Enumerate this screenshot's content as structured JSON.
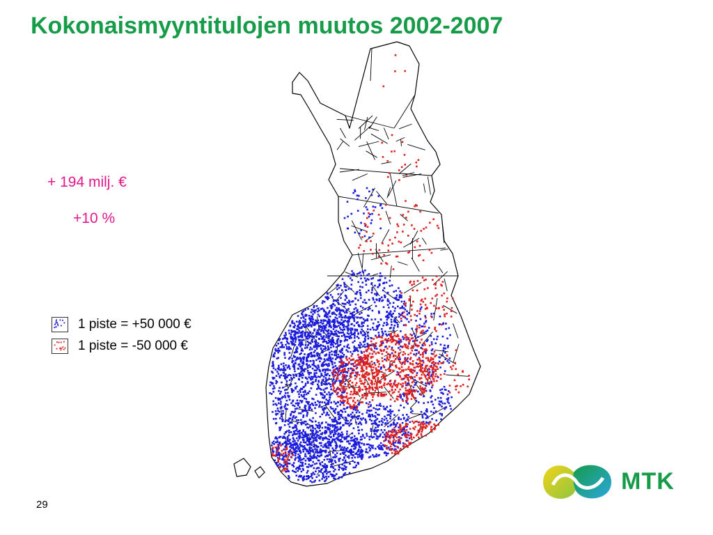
{
  "title": "Kokonaismyyntitulojen muutos 2002-2007",
  "stats": {
    "amount": "+ 194 milj. €",
    "percent": "+10 %"
  },
  "legend": [
    {
      "label": "1 piste = +50 000 €",
      "color": "#1a1adc"
    },
    {
      "label": "1 piste = -50 000 €",
      "color": "#e0201e"
    }
  ],
  "map": {
    "region": "Finland",
    "outline_color": "#000000",
    "positive_color": "#1a1adc",
    "negative_color": "#e0201e"
  },
  "page_number": "29",
  "logo": {
    "text": "MTK",
    "colors": [
      "#f3d21a",
      "#169b48",
      "#2aa7e0"
    ]
  }
}
